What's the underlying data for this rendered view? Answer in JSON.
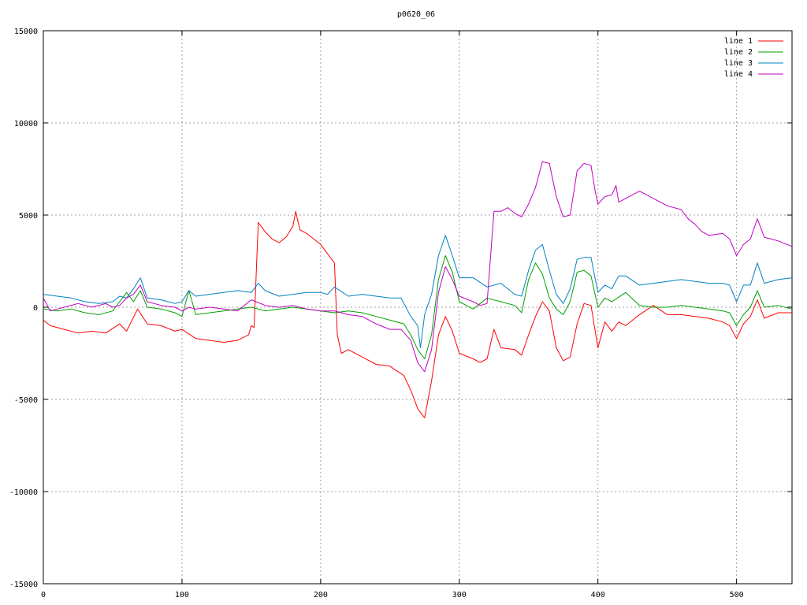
{
  "chart_data": {
    "type": "line",
    "title": "p0620_06",
    "xlabel": "",
    "ylabel": "",
    "xlim": [
      0,
      540
    ],
    "ylim": [
      -15000,
      15000
    ],
    "x_ticks": [
      0,
      100,
      200,
      300,
      400,
      500
    ],
    "y_ticks": [
      -15000,
      -10000,
      -5000,
      0,
      5000,
      10000,
      15000
    ],
    "grid": true,
    "legend_position": "top-right",
    "series": [
      {
        "name": "line 1",
        "color": "#ff0000",
        "points": [
          [
            0,
            -700
          ],
          [
            5,
            -1000
          ],
          [
            15,
            -1200
          ],
          [
            25,
            -1400
          ],
          [
            35,
            -1300
          ],
          [
            45,
            -1400
          ],
          [
            55,
            -900
          ],
          [
            60,
            -1300
          ],
          [
            68,
            -100
          ],
          [
            75,
            -900
          ],
          [
            85,
            -1000
          ],
          [
            95,
            -1300
          ],
          [
            100,
            -1200
          ],
          [
            110,
            -1700
          ],
          [
            120,
            -1800
          ],
          [
            130,
            -1900
          ],
          [
            140,
            -1800
          ],
          [
            148,
            -1500
          ],
          [
            150,
            -1000
          ],
          [
            152,
            -1100
          ],
          [
            155,
            4600
          ],
          [
            160,
            4100
          ],
          [
            165,
            3700
          ],
          [
            170,
            3500
          ],
          [
            175,
            3800
          ],
          [
            180,
            4400
          ],
          [
            182,
            5200
          ],
          [
            185,
            4200
          ],
          [
            190,
            4000
          ],
          [
            195,
            3700
          ],
          [
            200,
            3400
          ],
          [
            205,
            2900
          ],
          [
            210,
            2400
          ],
          [
            212,
            -1500
          ],
          [
            215,
            -2500
          ],
          [
            220,
            -2300
          ],
          [
            230,
            -2700
          ],
          [
            240,
            -3100
          ],
          [
            250,
            -3200
          ],
          [
            260,
            -3700
          ],
          [
            265,
            -4500
          ],
          [
            270,
            -5500
          ],
          [
            275,
            -6000
          ],
          [
            280,
            -4000
          ],
          [
            285,
            -1500
          ],
          [
            290,
            -500
          ],
          [
            295,
            -1300
          ],
          [
            300,
            -2500
          ],
          [
            310,
            -2800
          ],
          [
            315,
            -3000
          ],
          [
            320,
            -2800
          ],
          [
            325,
            -1200
          ],
          [
            330,
            -2200
          ],
          [
            340,
            -2300
          ],
          [
            345,
            -2600
          ],
          [
            350,
            -1500
          ],
          [
            355,
            -500
          ],
          [
            360,
            300
          ],
          [
            365,
            -200
          ],
          [
            370,
            -2200
          ],
          [
            375,
            -2900
          ],
          [
            380,
            -2700
          ],
          [
            385,
            -900
          ],
          [
            390,
            200
          ],
          [
            395,
            100
          ],
          [
            400,
            -2200
          ],
          [
            405,
            -800
          ],
          [
            410,
            -1300
          ],
          [
            415,
            -800
          ],
          [
            420,
            -1000
          ],
          [
            430,
            -400
          ],
          [
            440,
            100
          ],
          [
            450,
            -400
          ],
          [
            460,
            -400
          ],
          [
            470,
            -500
          ],
          [
            480,
            -600
          ],
          [
            490,
            -800
          ],
          [
            495,
            -1000
          ],
          [
            500,
            -1700
          ],
          [
            505,
            -900
          ],
          [
            510,
            -500
          ],
          [
            515,
            400
          ],
          [
            520,
            -600
          ],
          [
            530,
            -300
          ],
          [
            540,
            -300
          ]
        ]
      },
      {
        "name": "line 2",
        "color": "#00a000",
        "points": [
          [
            0,
            -100
          ],
          [
            10,
            -200
          ],
          [
            20,
            -100
          ],
          [
            30,
            -300
          ],
          [
            40,
            -400
          ],
          [
            50,
            -200
          ],
          [
            55,
            300
          ],
          [
            60,
            800
          ],
          [
            65,
            300
          ],
          [
            70,
            900
          ],
          [
            75,
            0
          ],
          [
            85,
            -100
          ],
          [
            95,
            -300
          ],
          [
            100,
            -500
          ],
          [
            105,
            900
          ],
          [
            110,
            -400
          ],
          [
            120,
            -300
          ],
          [
            130,
            -200
          ],
          [
            140,
            -100
          ],
          [
            150,
            0
          ],
          [
            160,
            -200
          ],
          [
            170,
            -100
          ],
          [
            180,
            0
          ],
          [
            190,
            -100
          ],
          [
            200,
            -200
          ],
          [
            210,
            -300
          ],
          [
            220,
            -200
          ],
          [
            230,
            -300
          ],
          [
            240,
            -500
          ],
          [
            250,
            -700
          ],
          [
            260,
            -900
          ],
          [
            265,
            -1500
          ],
          [
            270,
            -2300
          ],
          [
            275,
            -2800
          ],
          [
            280,
            -1500
          ],
          [
            285,
            1500
          ],
          [
            290,
            2800
          ],
          [
            295,
            1900
          ],
          [
            300,
            300
          ],
          [
            310,
            -100
          ],
          [
            320,
            500
          ],
          [
            330,
            300
          ],
          [
            340,
            100
          ],
          [
            345,
            -300
          ],
          [
            350,
            1500
          ],
          [
            355,
            2400
          ],
          [
            360,
            1800
          ],
          [
            365,
            500
          ],
          [
            370,
            -100
          ],
          [
            375,
            -400
          ],
          [
            380,
            300
          ],
          [
            385,
            1900
          ],
          [
            390,
            2000
          ],
          [
            395,
            1700
          ],
          [
            400,
            0
          ],
          [
            405,
            500
          ],
          [
            410,
            300
          ],
          [
            420,
            800
          ],
          [
            430,
            100
          ],
          [
            440,
            0
          ],
          [
            450,
            0
          ],
          [
            460,
            100
          ],
          [
            470,
            0
          ],
          [
            480,
            -100
          ],
          [
            490,
            -200
          ],
          [
            495,
            -300
          ],
          [
            500,
            -1000
          ],
          [
            505,
            -400
          ],
          [
            510,
            0
          ],
          [
            515,
            900
          ],
          [
            520,
            0
          ],
          [
            530,
            100
          ],
          [
            540,
            -100
          ]
        ]
      },
      {
        "name": "line 3",
        "color": "#0080c0",
        "points": [
          [
            0,
            700
          ],
          [
            10,
            600
          ],
          [
            20,
            500
          ],
          [
            30,
            300
          ],
          [
            40,
            200
          ],
          [
            50,
            300
          ],
          [
            55,
            600
          ],
          [
            60,
            500
          ],
          [
            65,
            1000
          ],
          [
            70,
            1600
          ],
          [
            75,
            500
          ],
          [
            85,
            400
          ],
          [
            95,
            200
          ],
          [
            100,
            300
          ],
          [
            105,
            900
          ],
          [
            110,
            600
          ],
          [
            120,
            700
          ],
          [
            130,
            800
          ],
          [
            140,
            900
          ],
          [
            150,
            800
          ],
          [
            155,
            1300
          ],
          [
            160,
            900
          ],
          [
            170,
            600
          ],
          [
            180,
            700
          ],
          [
            190,
            800
          ],
          [
            200,
            800
          ],
          [
            205,
            700
          ],
          [
            210,
            1100
          ],
          [
            220,
            600
          ],
          [
            230,
            700
          ],
          [
            240,
            600
          ],
          [
            250,
            500
          ],
          [
            258,
            500
          ],
          [
            265,
            -500
          ],
          [
            270,
            -1000
          ],
          [
            272,
            -2200
          ],
          [
            275,
            -400
          ],
          [
            280,
            700
          ],
          [
            285,
            2800
          ],
          [
            290,
            3900
          ],
          [
            295,
            2800
          ],
          [
            300,
            1600
          ],
          [
            310,
            1600
          ],
          [
            320,
            1100
          ],
          [
            330,
            1300
          ],
          [
            340,
            700
          ],
          [
            345,
            600
          ],
          [
            350,
            2000
          ],
          [
            355,
            3100
          ],
          [
            360,
            3400
          ],
          [
            365,
            2000
          ],
          [
            370,
            700
          ],
          [
            375,
            200
          ],
          [
            380,
            1000
          ],
          [
            385,
            2600
          ],
          [
            390,
            2700
          ],
          [
            395,
            2700
          ],
          [
            400,
            800
          ],
          [
            405,
            1200
          ],
          [
            410,
            1000
          ],
          [
            415,
            1700
          ],
          [
            420,
            1700
          ],
          [
            430,
            1200
          ],
          [
            440,
            1300
          ],
          [
            450,
            1400
          ],
          [
            460,
            1500
          ],
          [
            470,
            1400
          ],
          [
            480,
            1300
          ],
          [
            490,
            1300
          ],
          [
            495,
            1200
          ],
          [
            500,
            300
          ],
          [
            505,
            1200
          ],
          [
            510,
            1200
          ],
          [
            515,
            2400
          ],
          [
            520,
            1300
          ],
          [
            530,
            1500
          ],
          [
            540,
            1600
          ]
        ]
      },
      {
        "name": "line 4",
        "color": "#c000c0",
        "points": [
          [
            0,
            500
          ],
          [
            5,
            -200
          ],
          [
            15,
            0
          ],
          [
            25,
            200
          ],
          [
            35,
            0
          ],
          [
            45,
            200
          ],
          [
            50,
            0
          ],
          [
            55,
            100
          ],
          [
            60,
            500
          ],
          [
            65,
            700
          ],
          [
            70,
            1200
          ],
          [
            75,
            300
          ],
          [
            85,
            100
          ],
          [
            95,
            0
          ],
          [
            100,
            -200
          ],
          [
            105,
            0
          ],
          [
            110,
            -100
          ],
          [
            120,
            0
          ],
          [
            130,
            -100
          ],
          [
            140,
            -200
          ],
          [
            150,
            400
          ],
          [
            160,
            100
          ],
          [
            170,
            0
          ],
          [
            180,
            100
          ],
          [
            190,
            -100
          ],
          [
            200,
            -200
          ],
          [
            210,
            -200
          ],
          [
            215,
            -300
          ],
          [
            220,
            -400
          ],
          [
            230,
            -500
          ],
          [
            240,
            -900
          ],
          [
            250,
            -1200
          ],
          [
            258,
            -1200
          ],
          [
            265,
            -1800
          ],
          [
            270,
            -3000
          ],
          [
            275,
            -3500
          ],
          [
            280,
            -2300
          ],
          [
            285,
            800
          ],
          [
            290,
            2200
          ],
          [
            295,
            1500
          ],
          [
            300,
            600
          ],
          [
            310,
            300
          ],
          [
            315,
            100
          ],
          [
            320,
            200
          ],
          [
            325,
            5200
          ],
          [
            330,
            5200
          ],
          [
            335,
            5400
          ],
          [
            340,
            5100
          ],
          [
            345,
            4900
          ],
          [
            350,
            5600
          ],
          [
            355,
            6500
          ],
          [
            360,
            7900
          ],
          [
            365,
            7800
          ],
          [
            370,
            6000
          ],
          [
            375,
            4900
          ],
          [
            380,
            5000
          ],
          [
            385,
            7400
          ],
          [
            390,
            7800
          ],
          [
            395,
            7700
          ],
          [
            398,
            6300
          ],
          [
            400,
            5600
          ],
          [
            405,
            6000
          ],
          [
            410,
            6100
          ],
          [
            413,
            6600
          ],
          [
            415,
            5700
          ],
          [
            420,
            5900
          ],
          [
            430,
            6300
          ],
          [
            440,
            5900
          ],
          [
            450,
            5500
          ],
          [
            460,
            5300
          ],
          [
            465,
            4800
          ],
          [
            470,
            4500
          ],
          [
            475,
            4100
          ],
          [
            480,
            3900
          ],
          [
            490,
            4000
          ],
          [
            495,
            3700
          ],
          [
            500,
            2800
          ],
          [
            505,
            3400
          ],
          [
            510,
            3700
          ],
          [
            515,
            4800
          ],
          [
            520,
            3800
          ],
          [
            530,
            3600
          ],
          [
            540,
            3300
          ]
        ]
      }
    ]
  }
}
